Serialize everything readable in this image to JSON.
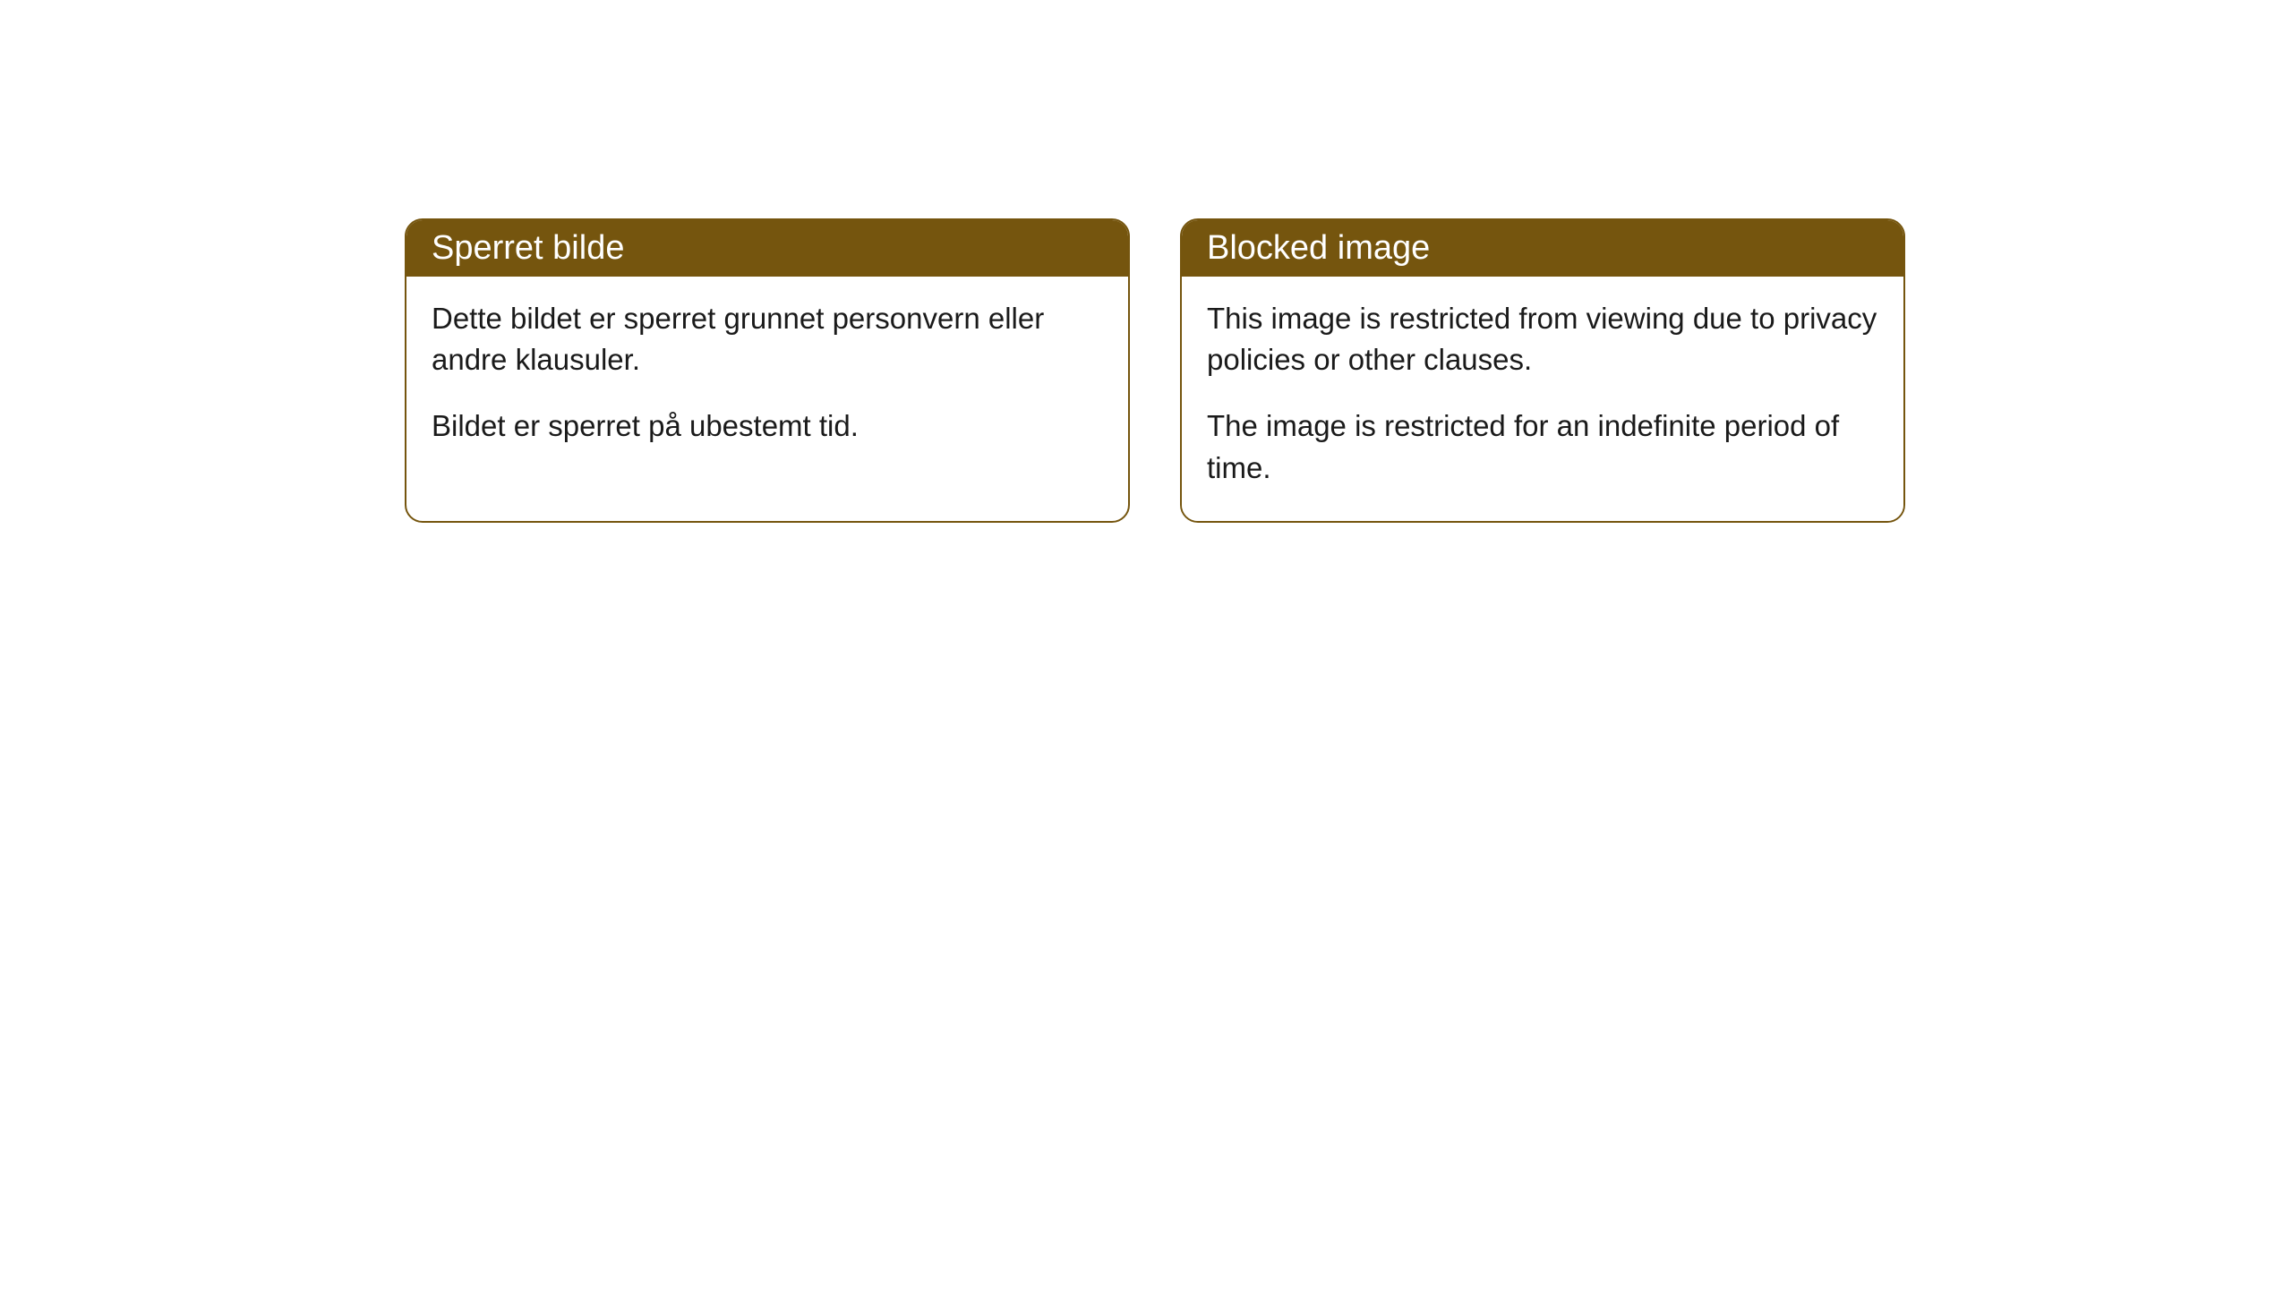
{
  "cards": [
    {
      "title": "Sperret bilde",
      "paragraph1": "Dette bildet er sperret grunnet personvern eller andre klausuler.",
      "paragraph2": "Bildet er sperret på ubestemt tid."
    },
    {
      "title": "Blocked image",
      "paragraph1": "This image is restricted from viewing due to privacy policies or other clauses.",
      "paragraph2": "The image is restricted for an indefinite period of time."
    }
  ],
  "styling": {
    "header_bg_color": "#75550e",
    "header_text_color": "#ffffff",
    "border_color": "#75550e",
    "body_bg_color": "#ffffff",
    "body_text_color": "#1a1a1a",
    "border_radius": 20,
    "title_fontsize": 38,
    "body_fontsize": 33
  }
}
